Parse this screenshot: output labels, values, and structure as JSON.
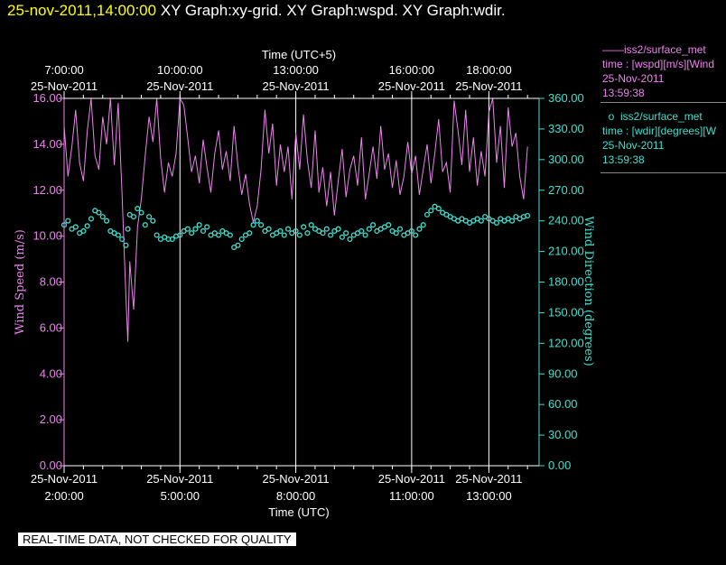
{
  "header": {
    "timestamp": "25-nov-2011,14:00:00",
    "titles": " XY Graph:xy-grid.  XY Graph:wspd.  XY Graph:wdir."
  },
  "colors": {
    "wspd": "#ee82ee",
    "wdir": "#40e0d0",
    "grid": "#ffffff",
    "background": "#000000"
  },
  "legend": {
    "wspd": {
      "line1": "iss2/surface_met",
      "line2": "time : [wspd][m/s][Wind",
      "line3": "25-Nov-2011",
      "line4": "13:59:38",
      "marker": "line"
    },
    "wdir": {
      "line1": "iss2/surface_met",
      "line2": "time : [wdir][degrees][W",
      "line3": "25-Nov-2011",
      "line4": "13:59:38",
      "marker": "circle"
    }
  },
  "footer": {
    "note": "REAL-TIME DATA, NOT CHECKED FOR QUALITY"
  },
  "chart_data": {
    "type": "line",
    "top_axis": {
      "label": "Time (UTC+5)",
      "ticks": [
        {
          "t": 0.0,
          "time": "7:00:00",
          "date": "25-Nov-2011"
        },
        {
          "t": 3.0,
          "time": "10:00:00",
          "date": "25-Nov-2011"
        },
        {
          "t": 6.0,
          "time": "13:00:00",
          "date": "25-Nov-2011"
        },
        {
          "t": 9.0,
          "time": "16:00:00",
          "date": "25-Nov-2011"
        },
        {
          "t": 11.0,
          "time": "18:00:00",
          "date": "25-Nov-2011"
        }
      ]
    },
    "bottom_axis": {
      "label": "Time (UTC)",
      "xlim": [
        0.0,
        12.3
      ],
      "ticks": [
        {
          "t": 0.0,
          "date": "25-Nov-2011",
          "time": "2:00:00"
        },
        {
          "t": 3.0,
          "date": "25-Nov-2011",
          "time": "5:00:00"
        },
        {
          "t": 6.0,
          "date": "25-Nov-2011",
          "time": "8:00:00"
        },
        {
          "t": 9.0,
          "date": "25-Nov-2011",
          "time": "11:00:00"
        },
        {
          "t": 11.0,
          "date": "25-Nov-2011",
          "time": "13:00:00"
        }
      ]
    },
    "left_axis": {
      "label": "Wind Speed (m/s)",
      "ylim": [
        0,
        16
      ],
      "ticks": [
        "0.00",
        "2.00",
        "4.00",
        "6.00",
        "8.00",
        "10.00",
        "12.00",
        "14.00",
        "16.00"
      ]
    },
    "right_axis": {
      "label": "Wind Direction (degrees)",
      "ylim": [
        0,
        360
      ],
      "ticks": [
        "0.00",
        "30.00",
        "60.00",
        "90.00",
        "120.00",
        "150.00",
        "180.00",
        "210.00",
        "240.00",
        "270.00",
        "300.00",
        "330.00",
        "360.00"
      ]
    },
    "grid": {
      "vertical_at_ticks": true
    },
    "series": [
      {
        "name": "wspd",
        "axis": "left",
        "style": "line",
        "x": [
          0.0,
          0.1,
          0.2,
          0.3,
          0.4,
          0.5,
          0.6,
          0.7,
          0.8,
          0.9,
          1.0,
          1.1,
          1.2,
          1.3,
          1.4,
          1.5,
          1.6,
          1.65,
          1.7,
          1.8,
          1.9,
          2.0,
          2.1,
          2.2,
          2.3,
          2.4,
          2.5,
          2.6,
          2.7,
          2.8,
          2.9,
          3.0,
          3.1,
          3.2,
          3.3,
          3.4,
          3.5,
          3.6,
          3.7,
          3.8,
          3.9,
          4.0,
          4.1,
          4.2,
          4.3,
          4.4,
          4.5,
          4.6,
          4.7,
          4.8,
          4.9,
          5.0,
          5.1,
          5.2,
          5.3,
          5.4,
          5.5,
          5.6,
          5.7,
          5.8,
          5.9,
          6.0,
          6.1,
          6.2,
          6.3,
          6.4,
          6.5,
          6.6,
          6.7,
          6.8,
          6.9,
          7.0,
          7.1,
          7.2,
          7.3,
          7.4,
          7.5,
          7.6,
          7.7,
          7.8,
          7.9,
          8.0,
          8.1,
          8.2,
          8.3,
          8.4,
          8.5,
          8.6,
          8.7,
          8.8,
          8.9,
          9.0,
          9.1,
          9.2,
          9.3,
          9.4,
          9.5,
          9.6,
          9.7,
          9.8,
          9.9,
          10.0,
          10.1,
          10.2,
          10.3,
          10.4,
          10.5,
          10.6,
          10.7,
          10.8,
          10.9,
          11.0,
          11.1,
          11.2,
          11.3,
          11.4,
          11.5,
          11.6,
          11.7,
          11.8,
          11.9,
          12.0
        ],
        "values": [
          14.8,
          12.6,
          13.9,
          15.5,
          13.2,
          12.4,
          14.6,
          16.0,
          13.5,
          12.9,
          15.2,
          14.0,
          16.0,
          13.1,
          15.8,
          11.9,
          7.4,
          5.4,
          8.9,
          6.8,
          10.4,
          11.6,
          13.5,
          15.2,
          14.1,
          16.0,
          13.4,
          11.9,
          13.2,
          12.6,
          13.6,
          16.0,
          15.7,
          14.3,
          12.8,
          13.5,
          12.3,
          14.2,
          13.0,
          11.9,
          13.6,
          14.6,
          12.9,
          13.7,
          12.4,
          14.8,
          13.1,
          11.8,
          12.7,
          11.4,
          10.6,
          11.3,
          12.9,
          15.5,
          13.6,
          14.9,
          12.2,
          14.0,
          12.8,
          13.9,
          11.6,
          14.5,
          12.9,
          15.3,
          13.3,
          12.1,
          14.6,
          11.9,
          13.0,
          11.3,
          12.8,
          10.9,
          12.4,
          13.8,
          11.7,
          12.9,
          13.5,
          12.2,
          14.3,
          11.6,
          12.7,
          13.9,
          12.5,
          14.8,
          12.9,
          13.6,
          12.1,
          13.3,
          11.8,
          12.6,
          14.1,
          12.7,
          13.5,
          11.8,
          12.9,
          14.0,
          12.3,
          13.6,
          15.1,
          12.8,
          13.2,
          11.9,
          15.9,
          14.6,
          13.1,
          15.5,
          12.8,
          14.3,
          12.2,
          13.7,
          12.6,
          15.4,
          16.0,
          13.2,
          14.8,
          12.1,
          15.6,
          13.9,
          14.5,
          12.6,
          11.6,
          13.9
        ]
      },
      {
        "name": "wdir",
        "axis": "right",
        "style": "circle",
        "x": [
          0.0,
          0.1,
          0.2,
          0.3,
          0.4,
          0.5,
          0.6,
          0.7,
          0.8,
          0.9,
          1.0,
          1.1,
          1.2,
          1.3,
          1.4,
          1.5,
          1.6,
          1.65,
          1.7,
          1.8,
          1.9,
          2.0,
          2.1,
          2.2,
          2.3,
          2.4,
          2.5,
          2.6,
          2.7,
          2.8,
          2.9,
          3.0,
          3.1,
          3.2,
          3.3,
          3.4,
          3.5,
          3.6,
          3.7,
          3.8,
          3.9,
          4.0,
          4.1,
          4.2,
          4.3,
          4.4,
          4.5,
          4.6,
          4.7,
          4.8,
          4.9,
          5.0,
          5.1,
          5.2,
          5.3,
          5.4,
          5.5,
          5.6,
          5.7,
          5.8,
          5.9,
          6.0,
          6.1,
          6.2,
          6.3,
          6.4,
          6.5,
          6.6,
          6.7,
          6.8,
          6.9,
          7.0,
          7.1,
          7.2,
          7.3,
          7.4,
          7.5,
          7.6,
          7.7,
          7.8,
          7.9,
          8.0,
          8.1,
          8.2,
          8.3,
          8.4,
          8.5,
          8.6,
          8.7,
          8.8,
          8.9,
          9.0,
          9.1,
          9.2,
          9.3,
          9.4,
          9.5,
          9.6,
          9.7,
          9.8,
          9.9,
          10.0,
          10.1,
          10.2,
          10.3,
          10.4,
          10.5,
          10.6,
          10.7,
          10.8,
          10.9,
          11.0,
          11.1,
          11.2,
          11.3,
          11.4,
          11.5,
          11.6,
          11.7,
          11.8,
          11.9,
          12.0
        ],
        "values": [
          236,
          240,
          232,
          234,
          228,
          230,
          235,
          242,
          250,
          248,
          244,
          240,
          230,
          228,
          226,
          222,
          216,
          232,
          246,
          244,
          252,
          248,
          236,
          244,
          240,
          226,
          222,
          224,
          222,
          222,
          225,
          226,
          230,
          232,
          228,
          232,
          236,
          230,
          234,
          226,
          228,
          226,
          230,
          228,
          226,
          214,
          216,
          222,
          226,
          228,
          236,
          240,
          236,
          230,
          232,
          226,
          228,
          230,
          226,
          232,
          228,
          230,
          226,
          234,
          228,
          236,
          232,
          230,
          228,
          232,
          226,
          230,
          232,
          224,
          228,
          222,
          226,
          228,
          230,
          226,
          232,
          236,
          230,
          232,
          234,
          236,
          230,
          228,
          232,
          226,
          228,
          230,
          226,
          232,
          236,
          246,
          250,
          254,
          252,
          248,
          246,
          244,
          242,
          240,
          242,
          240,
          238,
          240,
          242,
          240,
          244,
          242,
          240,
          238,
          242,
          240,
          242,
          240,
          244,
          242,
          244,
          245
        ]
      }
    ]
  }
}
